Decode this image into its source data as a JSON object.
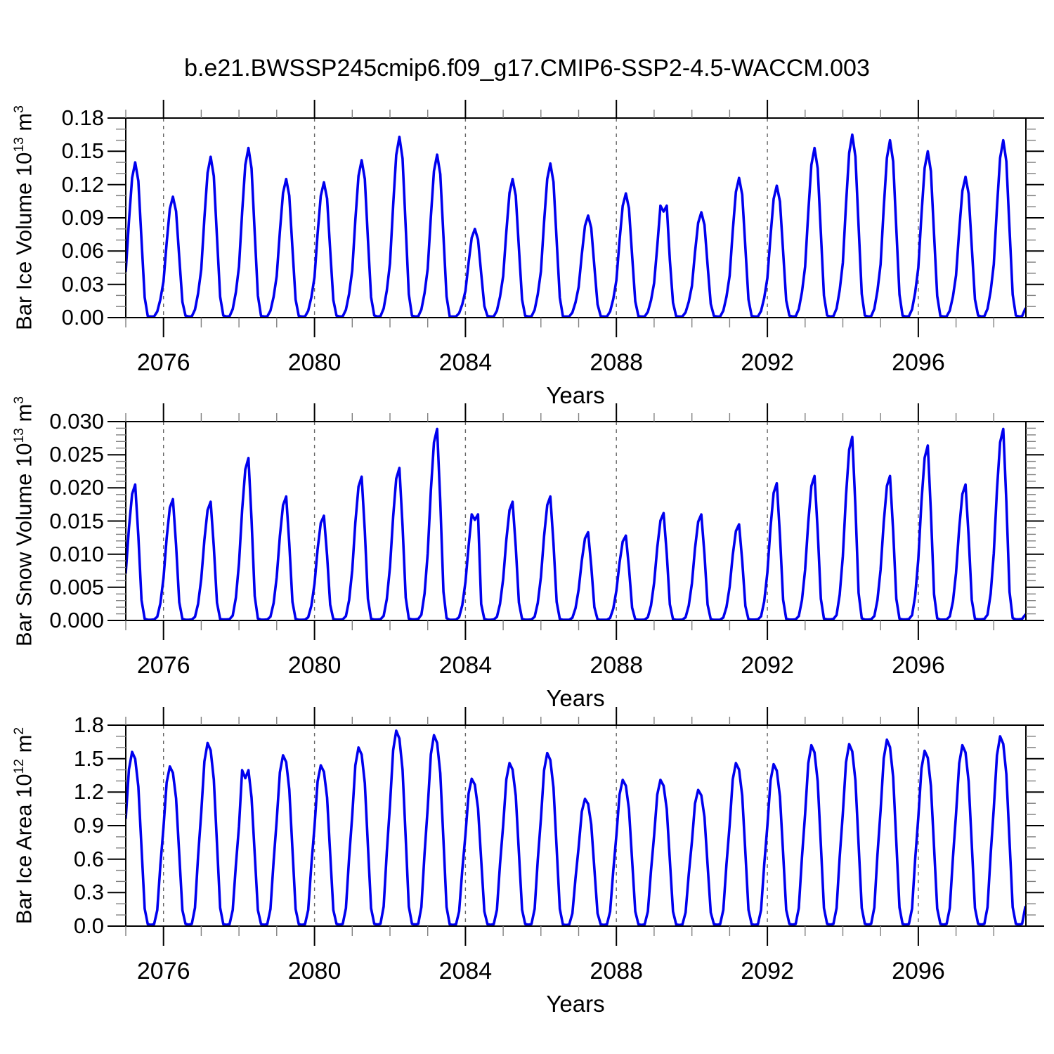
{
  "chart_title": "b.e21.BWSSP245cmip6.f09_g17.CMIP6-SSP2-4.5-WACCM.003",
  "colors": {
    "background": "#ffffff",
    "line": "#0000ee",
    "axis": "#000000",
    "minor_tick": "#808080",
    "gridline": "#666666",
    "text": "#000000"
  },
  "chart_data": {
    "type": "line",
    "description": "Monthly seasonal-cycle time series, three stacked panels, one blue series each",
    "x_axis": {
      "label": "Years",
      "range": [
        2075.0,
        2098.85
      ],
      "major_ticks": [
        2076,
        2080,
        2084,
        2088,
        2092,
        2096
      ],
      "minor_tick_interval_years": 1,
      "gridlines": "vertical dashed at major ticks"
    },
    "panels": [
      {
        "label_prefix": "Bar Ice Volume 10",
        "label_exp": "13",
        "label_unit": " m",
        "label_unit_exp": "3",
        "xlabel": "Years",
        "y_range": [
          0,
          0.18
        ],
        "y_tick_labels": [
          "0.00",
          "0.03",
          "0.06",
          "0.09",
          "0.12",
          "0.15",
          "0.18"
        ],
        "y_minor_divisions": 3,
        "years": [
          2075,
          2076,
          2077,
          2078,
          2079,
          2080,
          2081,
          2082,
          2083,
          2084,
          2085,
          2086,
          2087,
          2088,
          2089,
          2090,
          2091,
          2092,
          2093,
          2094,
          2095,
          2096,
          2097,
          2098
        ],
        "annual_peak_values": [
          0.14,
          0.109,
          0.145,
          0.153,
          0.125,
          0.122,
          0.142,
          0.163,
          0.147,
          0.08,
          0.125,
          0.139,
          0.092,
          0.112,
          0.104,
          0.095,
          0.126,
          0.119,
          0.153,
          0.165,
          0.16,
          0.15,
          0.127,
          0.16
        ],
        "annual_min_value": 0.001,
        "seasonal_shape_by_month": [
          0.3,
          0.62,
          0.9,
          1.0,
          0.88,
          0.5,
          0.13,
          0.012,
          0.006,
          0.008,
          0.05,
          0.15
        ],
        "double_top_years": [
          2089
        ]
      },
      {
        "label_prefix": "Bar Snow Volume 10",
        "label_exp": "13",
        "label_unit": " m",
        "label_unit_exp": "3",
        "xlabel": "Years",
        "y_range": [
          0,
          0.03
        ],
        "y_tick_labels": [
          "0.000",
          "0.005",
          "0.010",
          "0.015",
          "0.020",
          "0.025",
          "0.030"
        ],
        "y_minor_divisions": 5,
        "years": [
          2075,
          2076,
          2077,
          2078,
          2079,
          2080,
          2081,
          2082,
          2083,
          2084,
          2085,
          2086,
          2087,
          2088,
          2089,
          2090,
          2091,
          2092,
          2093,
          2094,
          2095,
          2096,
          2097,
          2098
        ],
        "annual_peak_values": [
          0.0205,
          0.0183,
          0.0179,
          0.0245,
          0.0187,
          0.0158,
          0.0217,
          0.023,
          0.0289,
          0.0165,
          0.0179,
          0.0187,
          0.0133,
          0.0128,
          0.0162,
          0.016,
          0.0145,
          0.0207,
          0.0218,
          0.0277,
          0.0218,
          0.0264,
          0.0205,
          0.0289
        ],
        "annual_min_value": 0.0001,
        "seasonal_shape_by_month": [
          0.35,
          0.68,
          0.93,
          1.0,
          0.62,
          0.15,
          0.012,
          0.006,
          0.006,
          0.008,
          0.03,
          0.14
        ],
        "double_top_years": [
          2084
        ]
      },
      {
        "label_prefix": "Bar Ice Area 10",
        "label_exp": "12",
        "label_unit": " m",
        "label_unit_exp": "2",
        "xlabel": "Years",
        "y_range": [
          0,
          1.8
        ],
        "y_tick_labels": [
          "0.0",
          "0.3",
          "0.6",
          "0.9",
          "1.2",
          "1.5",
          "1.8"
        ],
        "y_minor_divisions": 3,
        "years": [
          2075,
          2076,
          2077,
          2078,
          2079,
          2080,
          2081,
          2082,
          2083,
          2084,
          2085,
          2086,
          2087,
          2088,
          2089,
          2090,
          2091,
          2092,
          2093,
          2094,
          2095,
          2096,
          2097,
          2098
        ],
        "annual_peak_values": [
          1.56,
          1.43,
          1.64,
          1.44,
          1.53,
          1.44,
          1.6,
          1.75,
          1.71,
          1.32,
          1.46,
          1.55,
          1.14,
          1.31,
          1.31,
          1.22,
          1.46,
          1.45,
          1.62,
          1.63,
          1.67,
          1.57,
          1.62,
          1.7
        ],
        "annual_min_value": 0.01,
        "seasonal_shape_by_month": [
          0.62,
          0.9,
          1.0,
          0.96,
          0.8,
          0.45,
          0.1,
          0.012,
          0.008,
          0.012,
          0.1,
          0.38
        ],
        "double_top_years": [
          2078
        ]
      }
    ]
  }
}
